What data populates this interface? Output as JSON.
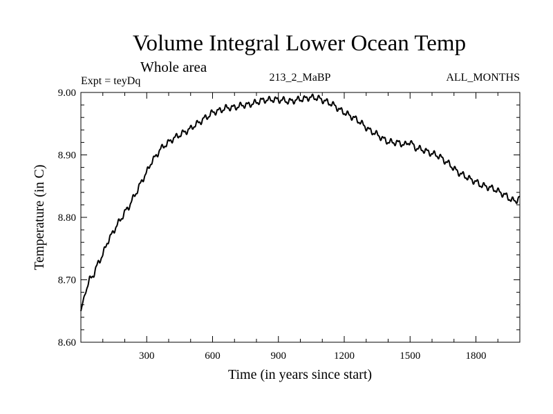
{
  "chart_data": {
    "type": "line",
    "title": "Volume Integral Lower Ocean Temp",
    "subtitle": "Whole area",
    "annotations": {
      "left": "Expt = teyDq",
      "center": "213_2_MaBP",
      "right": "ALL_MONTHS"
    },
    "xlabel": "Time (in years since start)",
    "ylabel": "Temperature (in C)",
    "xlim": [
      0,
      2000
    ],
    "ylim": [
      8.6,
      9.0
    ],
    "x_ticks": [
      300,
      600,
      900,
      1200,
      1500,
      1800
    ],
    "x_tick_labels": [
      "300",
      "600",
      "900",
      "1200",
      "1500",
      "1800"
    ],
    "y_ticks": [
      8.6,
      8.7,
      8.8,
      8.9,
      9.0
    ],
    "y_tick_labels": [
      "8.60",
      "8.70",
      "8.80",
      "8.90",
      "9.00"
    ],
    "grid": false,
    "series": [
      {
        "name": "Volume Integral Lower Ocean Temp",
        "x": [
          0,
          20,
          40,
          60,
          80,
          100,
          120,
          140,
          160,
          180,
          200,
          220,
          240,
          260,
          280,
          300,
          320,
          340,
          360,
          380,
          400,
          420,
          440,
          460,
          480,
          500,
          520,
          540,
          560,
          580,
          600,
          620,
          640,
          660,
          680,
          700,
          720,
          740,
          760,
          780,
          800,
          820,
          840,
          860,
          880,
          900,
          920,
          940,
          960,
          980,
          1000,
          1020,
          1040,
          1060,
          1080,
          1100,
          1120,
          1140,
          1160,
          1180,
          1200,
          1220,
          1240,
          1260,
          1280,
          1300,
          1320,
          1340,
          1360,
          1380,
          1400,
          1420,
          1440,
          1460,
          1480,
          1500,
          1520,
          1540,
          1560,
          1580,
          1600,
          1620,
          1640,
          1660,
          1680,
          1700,
          1720,
          1740,
          1760,
          1780,
          1800,
          1820,
          1840,
          1860,
          1880,
          1900,
          1920,
          1940,
          1960,
          1980,
          2000
        ],
        "values": [
          8.65,
          8.68,
          8.7,
          8.71,
          8.728,
          8.74,
          8.76,
          8.772,
          8.785,
          8.796,
          8.808,
          8.818,
          8.832,
          8.845,
          8.86,
          8.872,
          8.888,
          8.897,
          8.908,
          8.915,
          8.92,
          8.926,
          8.93,
          8.934,
          8.938,
          8.942,
          8.948,
          8.952,
          8.958,
          8.962,
          8.968,
          8.97,
          8.972,
          8.975,
          8.976,
          8.976,
          8.978,
          8.98,
          8.98,
          8.982,
          8.984,
          8.987,
          8.988,
          8.988,
          8.989,
          8.988,
          8.988,
          8.986,
          8.986,
          8.988,
          8.989,
          8.99,
          8.992,
          8.992,
          8.991,
          8.988,
          8.985,
          8.982,
          8.978,
          8.972,
          8.968,
          8.964,
          8.96,
          8.956,
          8.95,
          8.944,
          8.938,
          8.935,
          8.93,
          8.925,
          8.921,
          8.92,
          8.92,
          8.918,
          8.916,
          8.922,
          8.912,
          8.91,
          8.908,
          8.905,
          8.902,
          8.9,
          8.896,
          8.89,
          8.885,
          8.878,
          8.872,
          8.868,
          8.864,
          8.86,
          8.857,
          8.852,
          8.85,
          8.848,
          8.846,
          8.842,
          8.838,
          8.834,
          8.828,
          8.826,
          8.832
        ]
      }
    ]
  }
}
